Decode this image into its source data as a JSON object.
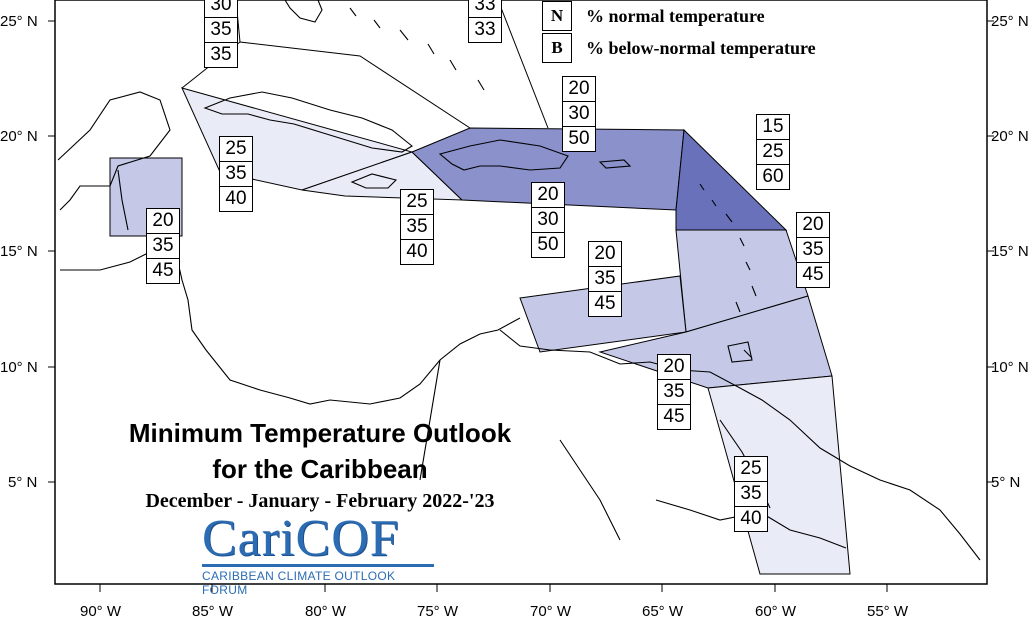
{
  "map": {
    "title_line1": "Minimum Temperature Outlook",
    "title_line2": "for the Caribbean",
    "subtitle": "December - January - February 2022-'23",
    "logo": {
      "name": "CariCOF",
      "tagline": "CARIBBEAN CLIMATE OUTLOOK FORUM",
      "color": "#2c6cb3"
    },
    "legend": [
      {
        "key": "N",
        "label": "% normal temperature"
      },
      {
        "key": "B",
        "label": "% below-normal temperature"
      }
    ],
    "latitude_labels": [
      "25° N",
      "20° N",
      "15° N",
      "10° N",
      "5° N"
    ],
    "longitude_labels": [
      "90° W",
      "85° W",
      "80° W",
      "75° W",
      "70° W",
      "65° W",
      "60° W",
      "55° W"
    ],
    "shading_colors": {
      "below_40": "#e9ebf6",
      "below_45": "#c5c8e6",
      "below_50": "#8b91cb",
      "below_60": "#6871b9"
    },
    "probability_boxes": [
      {
        "id": "bahamas-west",
        "values": [
          "30",
          "35",
          "35"
        ]
      },
      {
        "id": "bahamas-east",
        "values": [
          "33",
          "33"
        ]
      },
      {
        "id": "hispaniola-north",
        "values": [
          "20",
          "30",
          "50"
        ]
      },
      {
        "id": "cuba-south",
        "values": [
          "25",
          "35",
          "40"
        ]
      },
      {
        "id": "jamaica",
        "values": [
          "25",
          "35",
          "40"
        ]
      },
      {
        "id": "hispaniola-south",
        "values": [
          "20",
          "30",
          "50"
        ]
      },
      {
        "id": "northern-leewards",
        "values": [
          "15",
          "25",
          "60"
        ]
      },
      {
        "id": "belize",
        "values": [
          "20",
          "35",
          "45"
        ]
      },
      {
        "id": "windwards",
        "values": [
          "20",
          "35",
          "45"
        ]
      },
      {
        "id": "abc-islands",
        "values": [
          "20",
          "35",
          "45"
        ]
      },
      {
        "id": "trinidad",
        "values": [
          "20",
          "35",
          "45"
        ]
      },
      {
        "id": "guianas",
        "values": [
          "25",
          "35",
          "40"
        ]
      }
    ]
  }
}
